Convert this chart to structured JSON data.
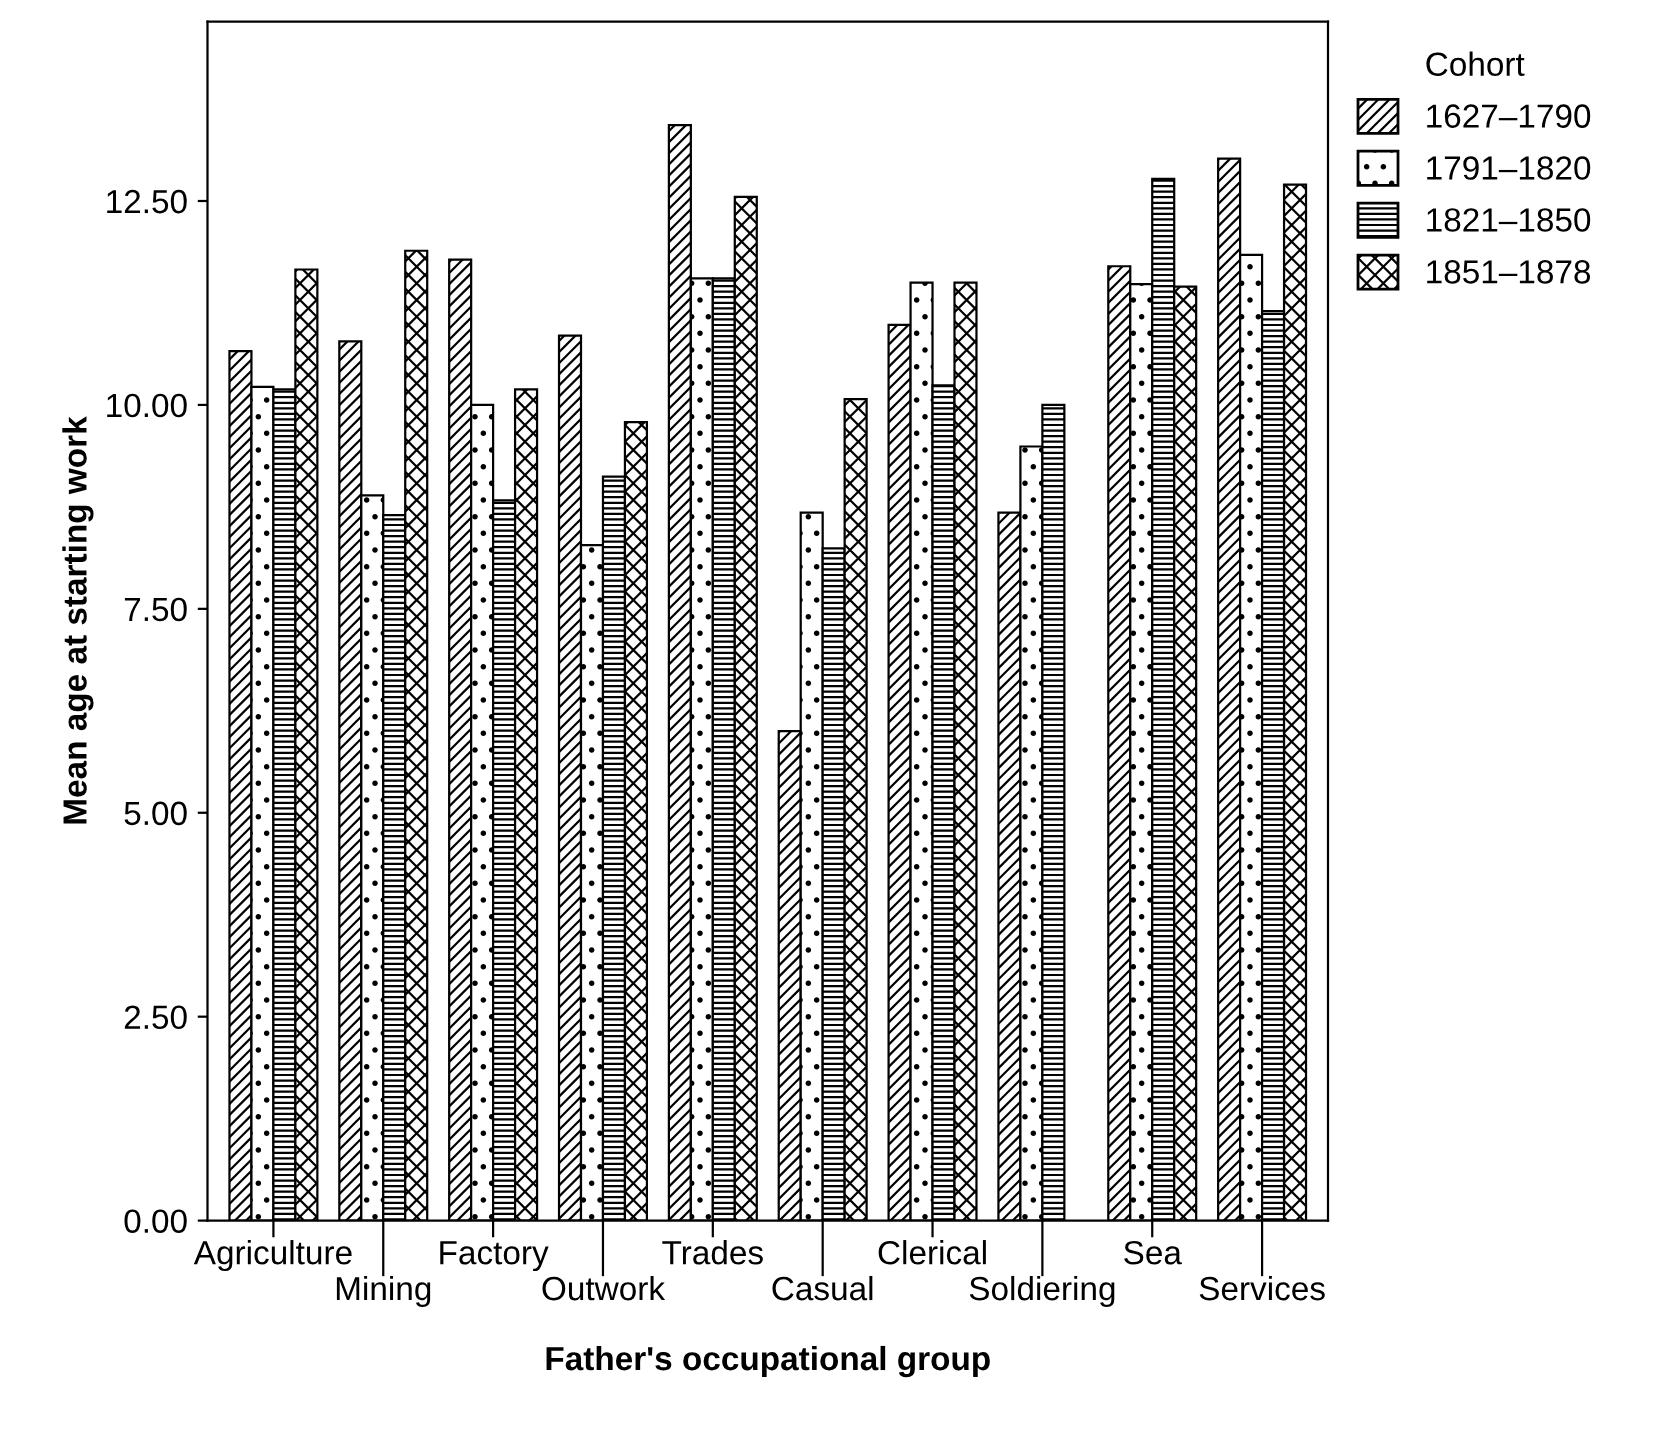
{
  "chart_data": {
    "type": "bar",
    "xlabel": "Father's occupational group",
    "ylabel": "Mean age at starting work",
    "legend_title": "Cohort",
    "legend": "top right",
    "grid": false,
    "categories": [
      "Agriculture",
      "Mining",
      "Factory",
      "Outwork",
      "Trades",
      "Casual",
      "Clerical",
      "Soldiering",
      "Sea",
      "Services"
    ],
    "ylim": [
      0,
      14.7
    ],
    "yticks": [
      {
        "value": 0,
        "label": "0.00"
      },
      {
        "value": 2.5,
        "label": "2.50"
      },
      {
        "value": 5,
        "label": "5.00"
      },
      {
        "value": 7.5,
        "label": "7.50"
      },
      {
        "value": 10,
        "label": "10.00"
      },
      {
        "value": 12.5,
        "label": "12.50"
      }
    ],
    "series": [
      {
        "name": "1627–1790",
        "color": "#000000",
        "values": [
          10.66,
          10.78,
          11.78,
          10.85,
          13.43,
          6.0,
          10.98,
          8.68,
          11.7,
          13.02
        ]
      },
      {
        "name": "1791–1820",
        "color": "#000000",
        "values": [
          10.22,
          8.89,
          10.0,
          8.28,
          11.55,
          8.68,
          11.5,
          9.49,
          11.48,
          11.84
        ]
      },
      {
        "name": "1821–1850",
        "color": "#000000",
        "values": [
          10.19,
          8.65,
          8.83,
          9.12,
          11.55,
          8.24,
          10.24,
          10.0,
          12.77,
          11.15
        ]
      },
      {
        "name": "1851–1878",
        "color": "#000000",
        "values": [
          11.66,
          11.89,
          10.19,
          9.79,
          12.55,
          10.07,
          11.5,
          null,
          11.45,
          12.7
        ]
      }
    ]
  }
}
